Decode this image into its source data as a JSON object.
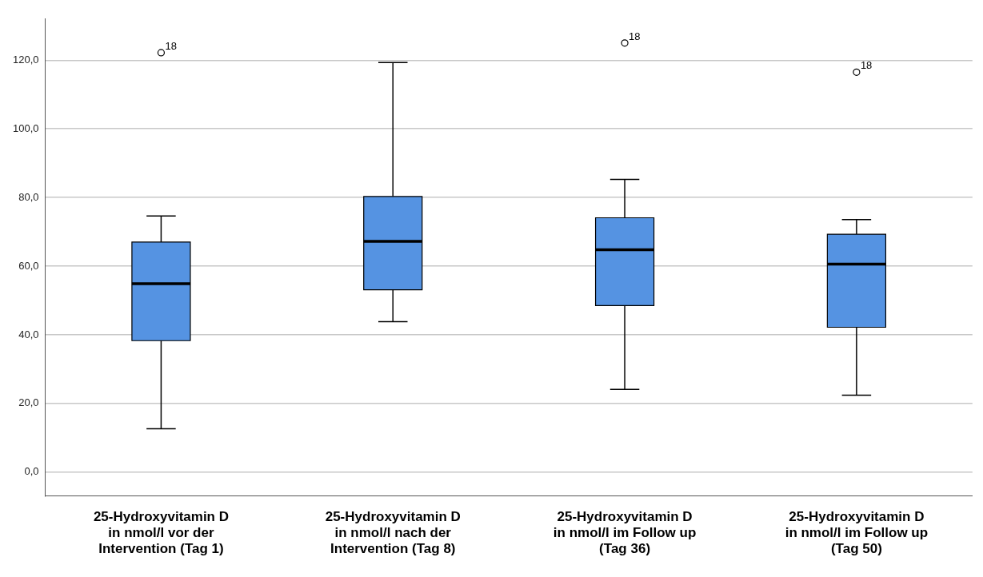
{
  "chart_data": {
    "type": "box",
    "categories": [
      "25-Hydroxyvitamin D\nin nmol/l vor der\nIntervention (Tag 1)",
      "25-Hydroxyvitamin D\nin nmol/l nach der\nIntervention (Tag 8)",
      "25-Hydroxyvitamin D\nin nmol/l im Follow up\n(Tag 36)",
      "25-Hydroxyvitamin D\nin nmol/l im Follow up\n(Tag 50)"
    ],
    "color": "#5593e2",
    "boxes": [
      {
        "low": 12.6,
        "q1": 38.3,
        "median": 54.9,
        "q3": 67.0,
        "high": 74.6,
        "outliers": [
          122.2
        ]
      },
      {
        "low": 43.8,
        "q1": 53.1,
        "median": 67.2,
        "q3": 80.3,
        "high": 119.3
      },
      {
        "low": 24.1,
        "q1": 48.5,
        "median": 64.8,
        "q3": 74.1,
        "high": 85.3,
        "outliers": [
          125.0
        ]
      },
      {
        "low": 22.4,
        "q1": 42.2,
        "median": 60.6,
        "q3": 69.3,
        "high": 73.6,
        "outliers": [
          116.5
        ]
      }
    ],
    "ylim": [
      -7,
      132
    ],
    "yticks": [
      {
        "value": 0,
        "label": "0,0"
      },
      {
        "value": 20,
        "label": "20,0"
      },
      {
        "value": 40,
        "label": "40,0"
      },
      {
        "value": 60,
        "label": "60,0"
      },
      {
        "value": 80,
        "label": "80,0"
      },
      {
        "value": 100,
        "label": "100,0"
      },
      {
        "value": 120,
        "label": "120,0"
      }
    ],
    "grid": "y",
    "annotations": [
      "18",
      "18",
      "18"
    ]
  }
}
